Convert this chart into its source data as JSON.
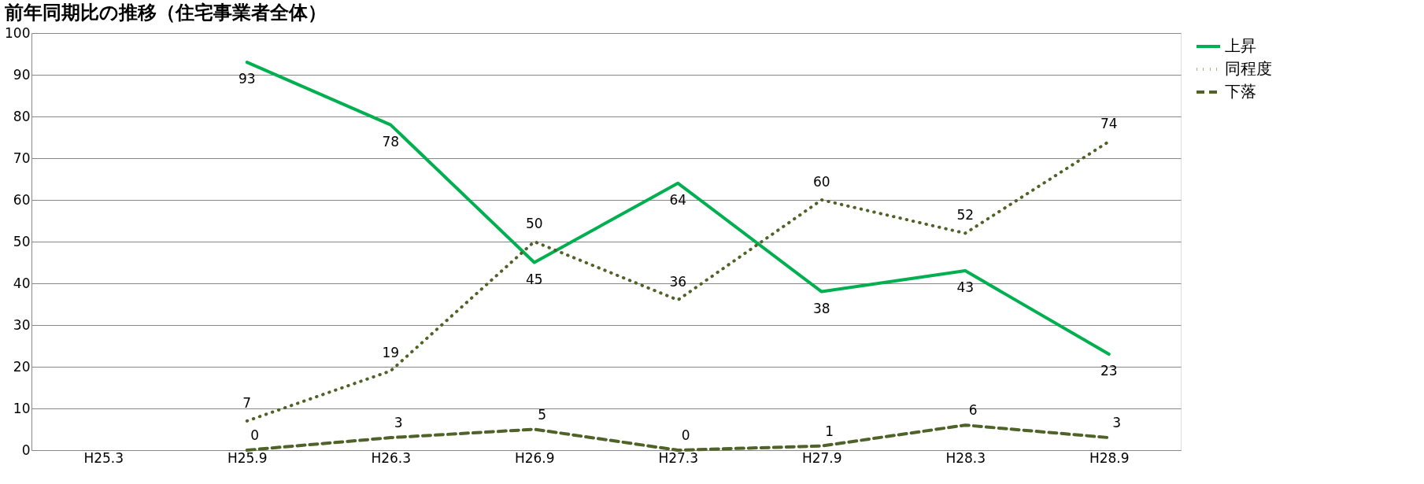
{
  "chart_data": {
    "type": "line",
    "title": "前年同期比の推移（住宅事業者全体）",
    "categories": [
      "H25.3",
      "H25.9",
      "H26.3",
      "H26.9",
      "H27.3",
      "H27.9",
      "H28.3",
      "H28.9"
    ],
    "series": [
      {
        "name": "上昇",
        "color": "#00b050",
        "line_style": "solid",
        "values": [
          null,
          93,
          78,
          45,
          64,
          38,
          43,
          23
        ]
      },
      {
        "name": "同程度",
        "color": "#4f6228",
        "line_style": "dotted",
        "values": [
          null,
          7,
          19,
          50,
          36,
          60,
          52,
          74
        ]
      },
      {
        "name": "下落",
        "color": "#4f6228",
        "line_style": "dashed",
        "values": [
          null,
          0,
          3,
          5,
          0,
          1,
          6,
          3
        ]
      }
    ],
    "ylim": [
      0,
      100
    ],
    "yticks": [
      0,
      10,
      20,
      30,
      40,
      50,
      60,
      70,
      80,
      90,
      100
    ],
    "grid": "y",
    "legend": "right",
    "data_labels": true,
    "marker": "none"
  }
}
